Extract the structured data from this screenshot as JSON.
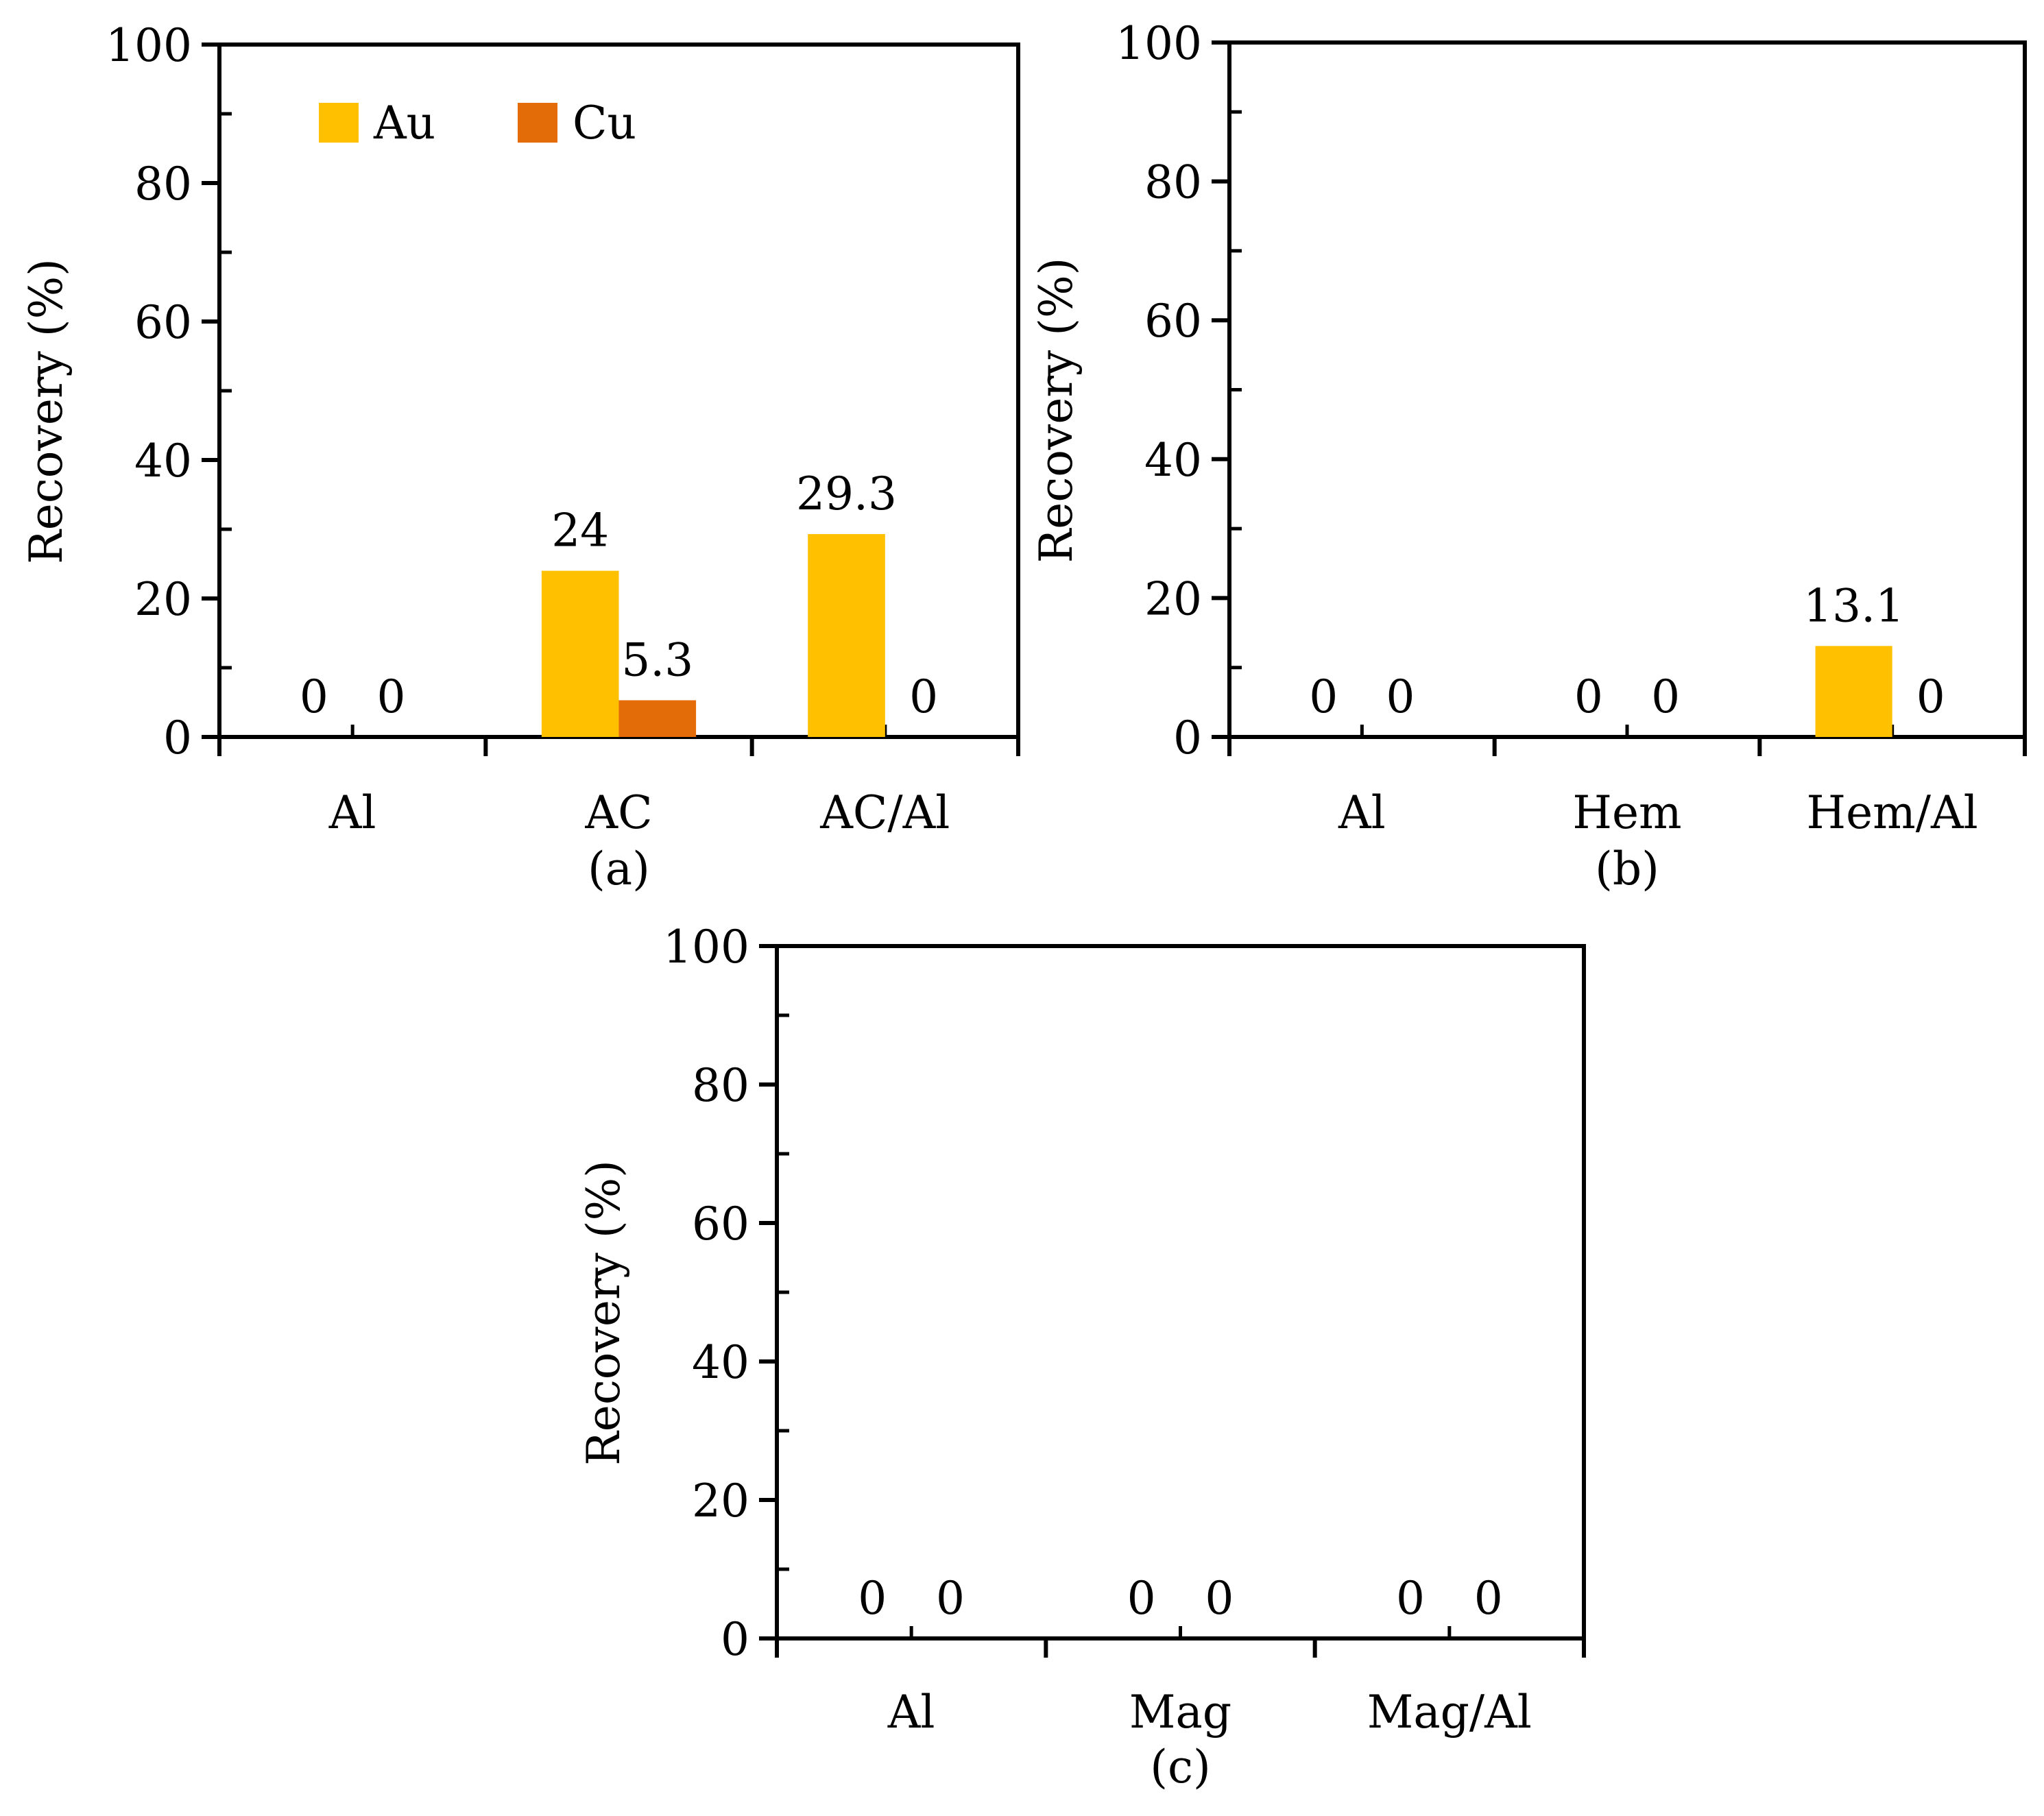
{
  "colors": {
    "au": "#FFC000",
    "cu": "#E36C09",
    "axis": "#000000"
  },
  "chart_data": [
    {
      "panel": "a",
      "type": "bar",
      "caption": "(a)",
      "ylabel": "Recovery (%)",
      "ylim": [
        0,
        100
      ],
      "yticks": [
        "0",
        "20",
        "40",
        "60",
        "80",
        "100"
      ],
      "categories": [
        "Al",
        "AC",
        "AC/Al"
      ],
      "legend": {
        "placement": "top-left",
        "entries": [
          "Au",
          "Cu"
        ]
      },
      "series": [
        {
          "name": "Au",
          "values": [
            0,
            24,
            29.3
          ],
          "labels": [
            "0",
            "24",
            "29.3"
          ]
        },
        {
          "name": "Cu",
          "values": [
            0,
            5.3,
            0
          ],
          "labels": [
            "0",
            "5.3",
            "0"
          ]
        }
      ]
    },
    {
      "panel": "b",
      "type": "bar",
      "caption": "(b)",
      "ylabel": "Recovery (%)",
      "ylim": [
        0,
        100
      ],
      "yticks": [
        "0",
        "20",
        "40",
        "60",
        "80",
        "100"
      ],
      "categories": [
        "Al",
        "Hem",
        "Hem/Al"
      ],
      "series": [
        {
          "name": "Au",
          "values": [
            0,
            0,
            13.1
          ],
          "labels": [
            "0",
            "0",
            "13.1"
          ]
        },
        {
          "name": "Cu",
          "values": [
            0,
            0,
            0
          ],
          "labels": [
            "0",
            "0",
            "0"
          ]
        }
      ]
    },
    {
      "panel": "c",
      "type": "bar",
      "caption": "(c)",
      "ylabel": "Recovery (%)",
      "ylim": [
        0,
        100
      ],
      "yticks": [
        "0",
        "20",
        "40",
        "60",
        "80",
        "100"
      ],
      "categories": [
        "Al",
        "Mag",
        "Mag/Al"
      ],
      "series": [
        {
          "name": "Au",
          "values": [
            0,
            0,
            0
          ],
          "labels": [
            "0",
            "0",
            "0"
          ]
        },
        {
          "name": "Cu",
          "values": [
            0,
            0,
            0
          ],
          "labels": [
            "0",
            "0",
            "0"
          ]
        }
      ]
    }
  ]
}
